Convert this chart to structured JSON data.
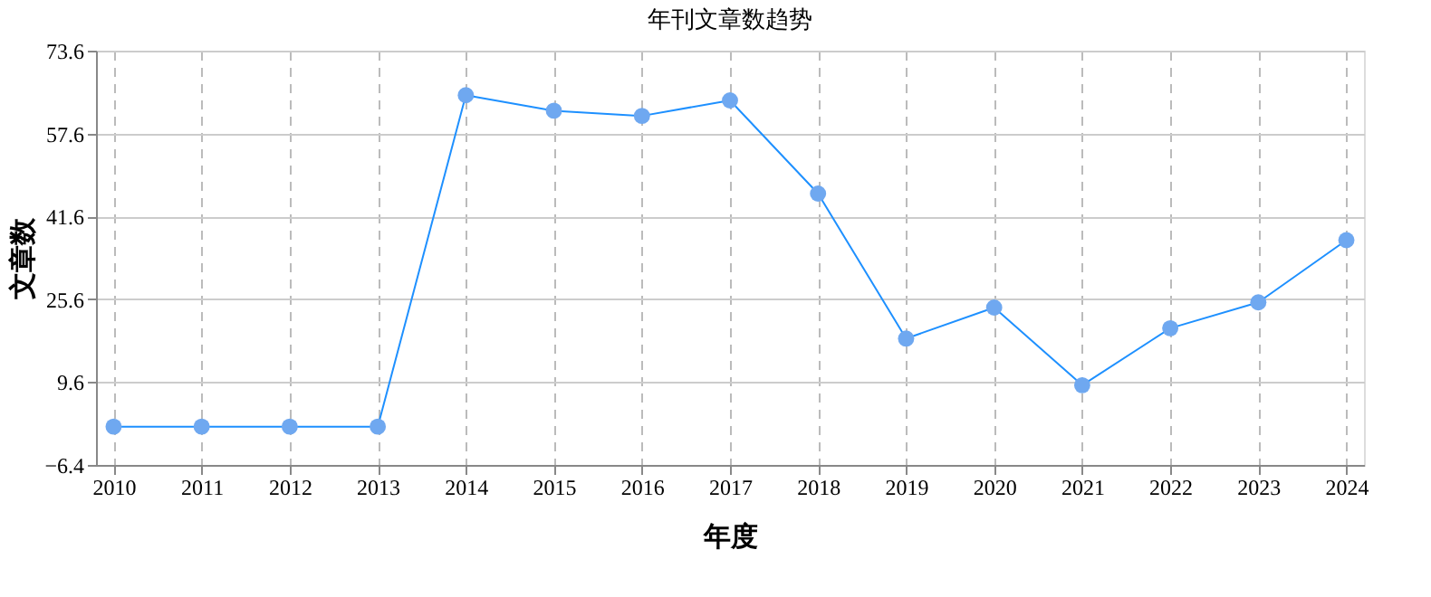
{
  "chart_data": {
    "type": "line",
    "title": "年刊文章数趋势",
    "xlabel": "年度",
    "ylabel": "文章数",
    "categories": [
      "2010",
      "2011",
      "2012",
      "2013",
      "2014",
      "2015",
      "2016",
      "2017",
      "2018",
      "2019",
      "2020",
      "2021",
      "2022",
      "2023",
      "2024"
    ],
    "series": [
      {
        "color": "#1e90ff",
        "values": [
          1,
          1,
          1,
          1,
          65,
          62,
          61,
          64,
          46,
          18,
          24,
          9,
          20,
          25,
          37
        ]
      }
    ],
    "ylim": [
      -6.4,
      73.6
    ],
    "yticks": [
      -6.4,
      9.6,
      25.6,
      41.6,
      57.6,
      73.6
    ],
    "grid": true,
    "marker": "circle",
    "line_style": "solid"
  }
}
